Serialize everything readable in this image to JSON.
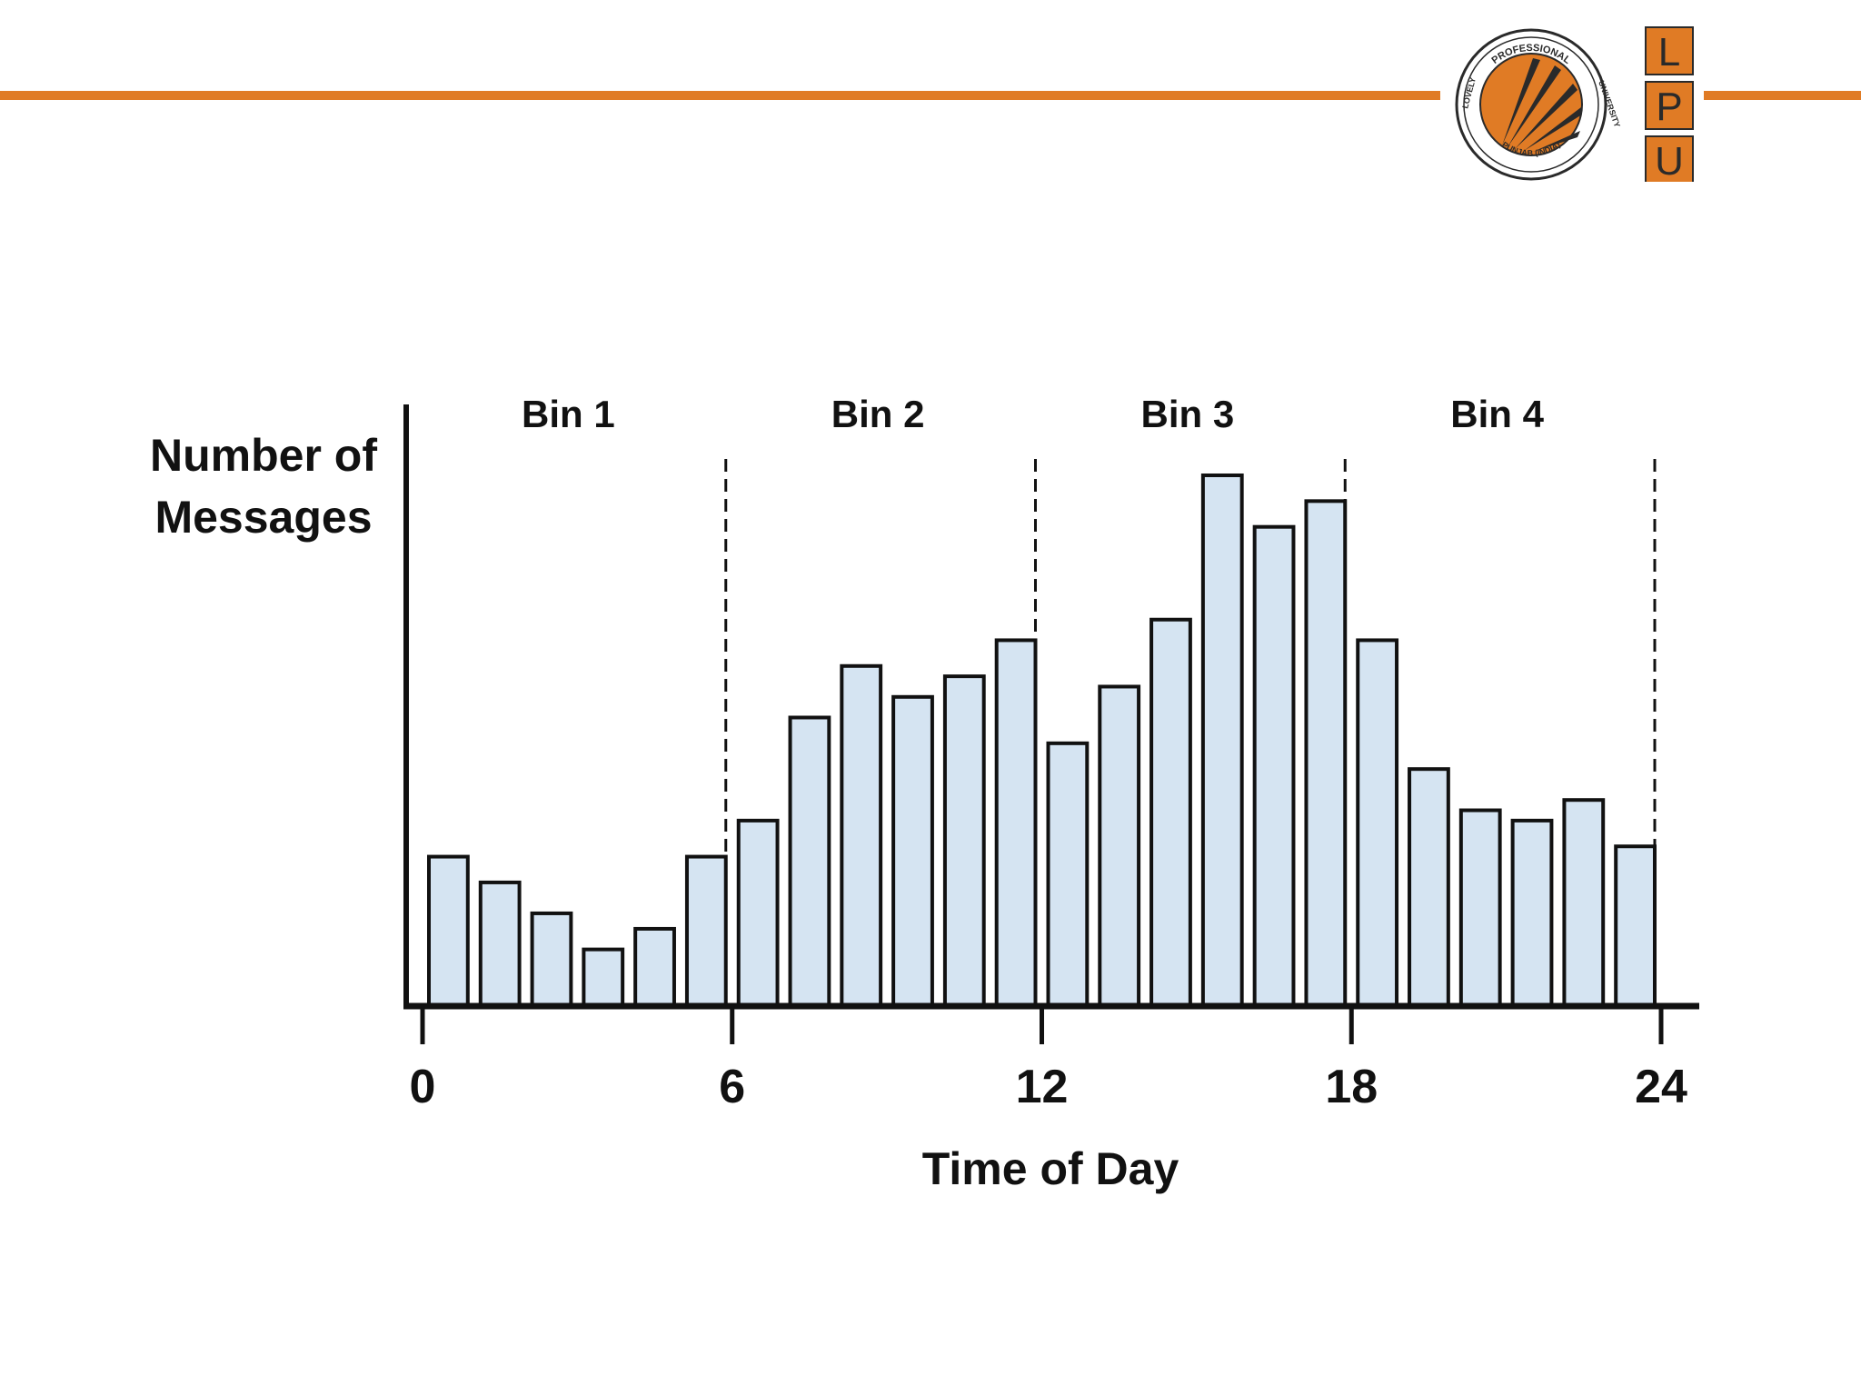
{
  "colors": {
    "accent": "#e07b25",
    "bar_fill": "#d5e4f2",
    "bar_stroke": "#111111",
    "logo_dark": "#2a2a2a"
  },
  "logo": {
    "seal_top_text": "PROFESSIONAL",
    "seal_right_text": "UNIVERSITY",
    "seal_left_text": "LOVELY",
    "seal_bottom_text": "PUNJAB (INDIA)",
    "letters": [
      "L",
      "P",
      "U"
    ]
  },
  "chart_data": {
    "type": "bar",
    "ylabel_line1": "Number of",
    "ylabel_line2": "Messages",
    "xlabel": "Time of Day",
    "xlim": [
      0,
      24
    ],
    "ylim": [
      0,
      100
    ],
    "x_ticks": [
      "0",
      "6",
      "12",
      "18",
      "24"
    ],
    "bins": [
      {
        "label": "Bin 1",
        "start": 0,
        "end": 6
      },
      {
        "label": "Bin 2",
        "start": 6,
        "end": 12
      },
      {
        "label": "Bin 3",
        "start": 12,
        "end": 18
      },
      {
        "label": "Bin 4",
        "start": 18,
        "end": 24
      }
    ],
    "categories": [
      "0",
      "1",
      "2",
      "3",
      "4",
      "5",
      "6",
      "7",
      "8",
      "9",
      "10",
      "11",
      "12",
      "13",
      "14",
      "15",
      "16",
      "17",
      "18",
      "19",
      "20",
      "21",
      "22",
      "23"
    ],
    "values": [
      29,
      24,
      18,
      11,
      15,
      29,
      36,
      56,
      66,
      60,
      64,
      71,
      51,
      62,
      75,
      103,
      93,
      98,
      71,
      46,
      38,
      36,
      40,
      31
    ],
    "grid": false,
    "legend": "none"
  }
}
